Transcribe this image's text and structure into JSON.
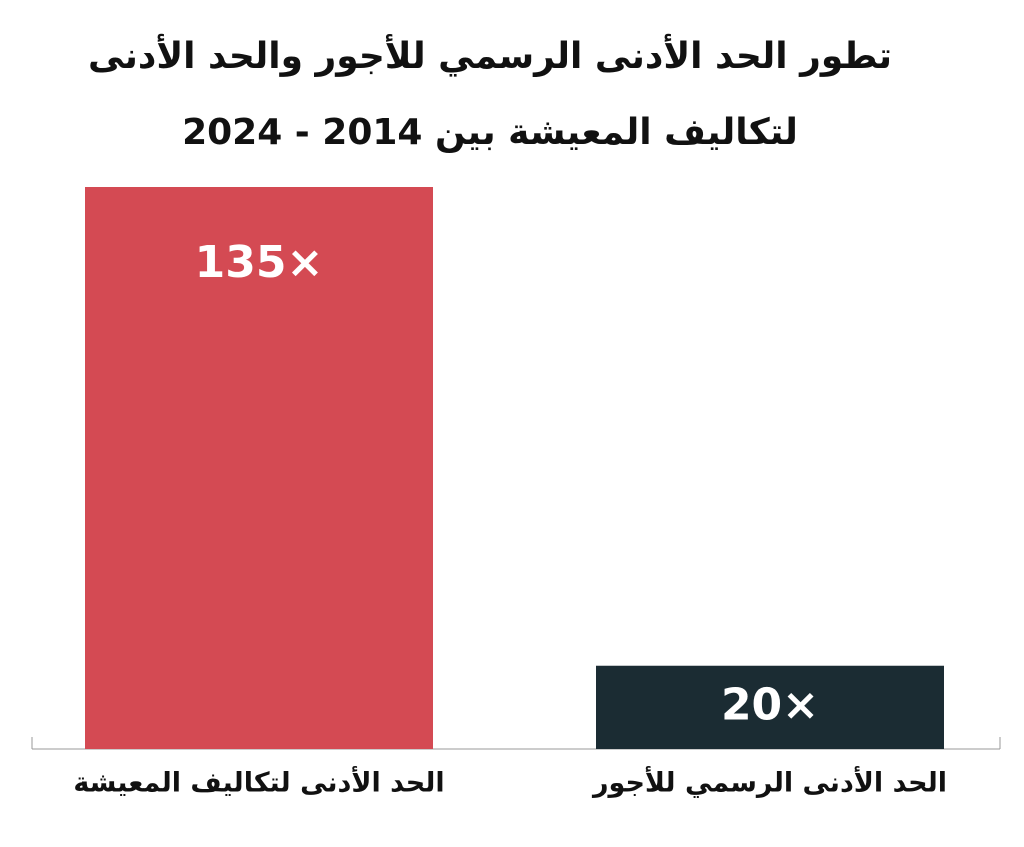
{
  "chart_data": {
    "type": "bar",
    "title": [
      "تطور الحد الأدنى الرسمي للأجور والحد الأدنى",
      "لتكاليف المعيشة بين 2014 - 2024"
    ],
    "categories": [
      "الحد الأدنى لتكاليف المعيشة",
      "الحد الأدنى الرسمي للأجور"
    ],
    "values": [
      135,
      20
    ],
    "value_labels": [
      "135×",
      "20×"
    ],
    "colors": [
      "#d44a53",
      "#1b2c33"
    ],
    "ylim": [
      0,
      135
    ]
  }
}
